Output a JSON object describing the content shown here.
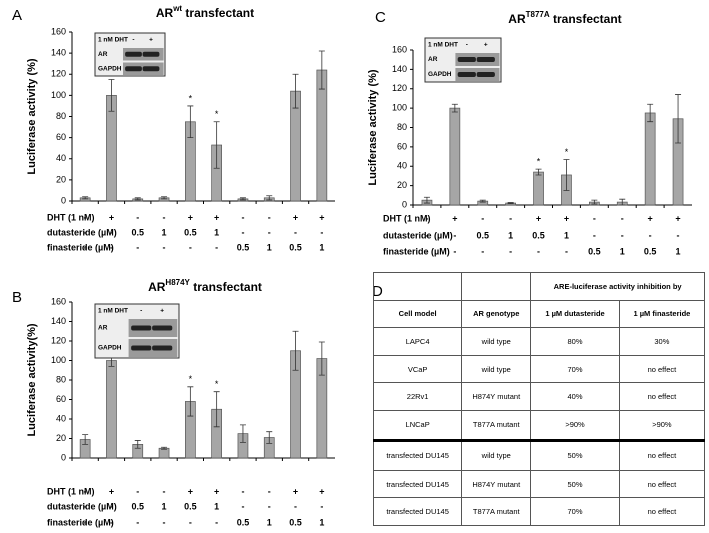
{
  "chart_data": [
    {
      "type": "bar",
      "panel": "A",
      "title": {
        "text": "AR",
        "sup": "wt",
        "rest": " transfectant"
      },
      "ylabel": "Luciferase activity (%)",
      "color": "#a6a6a6",
      "values": [
        3,
        100,
        2,
        3,
        75,
        53,
        2,
        3,
        104,
        124
      ],
      "errors": [
        1,
        15,
        1,
        1,
        15,
        22,
        1,
        2,
        16,
        18
      ],
      "marker": "*",
      "significant": [
        false,
        false,
        false,
        false,
        true,
        true,
        false,
        false,
        false,
        false
      ],
      "ylim": [
        0,
        160
      ],
      "yticks": [
        0,
        20,
        40,
        60,
        80,
        100,
        120,
        140,
        160
      ],
      "grid": false,
      "conditions": [
        {
          "label": "DHT (1 nM)",
          "values": [
            "-",
            "+",
            "-",
            "-",
            "+",
            "+",
            "-",
            "-",
            "+",
            "+"
          ]
        },
        {
          "label": "dutasteride (µM)",
          "values": [
            "-",
            "-",
            "0.5",
            "1",
            "0.5",
            "1",
            "-",
            "-",
            "-",
            "-"
          ]
        },
        {
          "label": "finasteride (µM)",
          "values": [
            "-",
            "-",
            "-",
            "-",
            "-",
            "-",
            "0.5",
            "1",
            "0.5",
            "1"
          ]
        }
      ],
      "inset": {
        "header": "1 nM DHT",
        "lanes": [
          "-",
          "+"
        ],
        "rows": [
          "AR",
          "GAPDH"
        ]
      }
    },
    {
      "type": "bar",
      "panel": "B",
      "title": {
        "text": "AR",
        "sup": "H874Y",
        "rest": " transfectant"
      },
      "ylabel": "Luciferase activity(%)",
      "color": "#a6a6a6",
      "values": [
        19,
        100,
        14,
        10,
        58,
        50,
        25,
        21,
        110,
        102
      ],
      "errors": [
        5,
        6,
        4,
        1,
        15,
        18,
        9,
        6,
        20,
        17
      ],
      "marker": "*",
      "significant": [
        false,
        false,
        false,
        false,
        true,
        true,
        false,
        false,
        false,
        false
      ],
      "ylim": [
        0,
        160
      ],
      "yticks": [
        0,
        20,
        40,
        60,
        80,
        100,
        120,
        140,
        160
      ],
      "grid": false,
      "conditions": [
        {
          "label": "DHT (1 nM)",
          "values": [
            "-",
            "+",
            "-",
            "-",
            "+",
            "+",
            "-",
            "-",
            "+",
            "+"
          ]
        },
        {
          "label": "dutasteride (µM)",
          "values": [
            "-",
            "-",
            "0.5",
            "1",
            "0.5",
            "1",
            "-",
            "-",
            "-",
            "-"
          ]
        },
        {
          "label": "finasteride (µM)",
          "values": [
            "-",
            "-",
            "-",
            "-",
            "-",
            "-",
            "0.5",
            "1",
            "0.5",
            "1"
          ]
        }
      ],
      "inset": {
        "header": "1 nM DHT",
        "lanes": [
          "-",
          "+"
        ],
        "rows": [
          "AR",
          "GAPDH"
        ]
      }
    },
    {
      "type": "bar",
      "panel": "C",
      "title": {
        "text": "AR",
        "sup": "T877A",
        "rest": " transfectant"
      },
      "ylabel": "Luciferase activity (%)",
      "color": "#a6a6a6",
      "values": [
        5,
        100,
        4,
        2,
        34,
        31,
        3,
        3,
        95,
        89
      ],
      "errors": [
        3,
        4,
        1,
        0.5,
        3,
        16,
        2,
        3,
        9,
        25
      ],
      "marker": "*",
      "significant": [
        false,
        false,
        false,
        false,
        true,
        true,
        false,
        false,
        false,
        false
      ],
      "ylim": [
        0,
        160
      ],
      "yticks": [
        0,
        20,
        40,
        60,
        80,
        100,
        120,
        140,
        160
      ],
      "grid": false,
      "conditions": [
        {
          "label": "DHT (1 nM)",
          "values": [
            "-",
            "+",
            "-",
            "-",
            "+",
            "+",
            "-",
            "-",
            "+",
            "+"
          ]
        },
        {
          "label": "dutasteride (µM)",
          "values": [
            "-",
            "-",
            "0.5",
            "1",
            "0.5",
            "1",
            "-",
            "-",
            "-",
            "-"
          ]
        },
        {
          "label": "finasteride (µM)",
          "values": [
            "-",
            "-",
            "-",
            "-",
            "-",
            "-",
            "0.5",
            "1",
            "0.5",
            "1"
          ]
        }
      ],
      "inset": {
        "header": "1 nM DHT",
        "lanes": [
          "-",
          "+"
        ],
        "rows": [
          "AR",
          "GAPDH"
        ]
      }
    }
  ],
  "table": {
    "panel": "D",
    "span_header": "ARE-luciferase activity inhibition by",
    "columns": [
      "Cell model",
      "AR genotype",
      "1 µM dutasteride",
      "1 µM finasteride"
    ],
    "groups": [
      [
        [
          "LAPC4",
          "wild type",
          "80%",
          "30%"
        ],
        [
          "VCaP",
          "wild type",
          "70%",
          "no effect"
        ],
        [
          "22Rv1",
          "H874Y mutant",
          "40%",
          "no effect"
        ],
        [
          "LNCaP",
          "T877A mutant",
          ">90%",
          ">90%"
        ]
      ],
      [
        [
          "transfected DU145",
          "wild type",
          "50%",
          "no effect"
        ],
        [
          "transfected DU145",
          "H874Y mutant",
          "50%",
          "no effect"
        ],
        [
          "transfected DU145",
          "T877A mutant",
          "70%",
          "no effect"
        ]
      ]
    ]
  }
}
